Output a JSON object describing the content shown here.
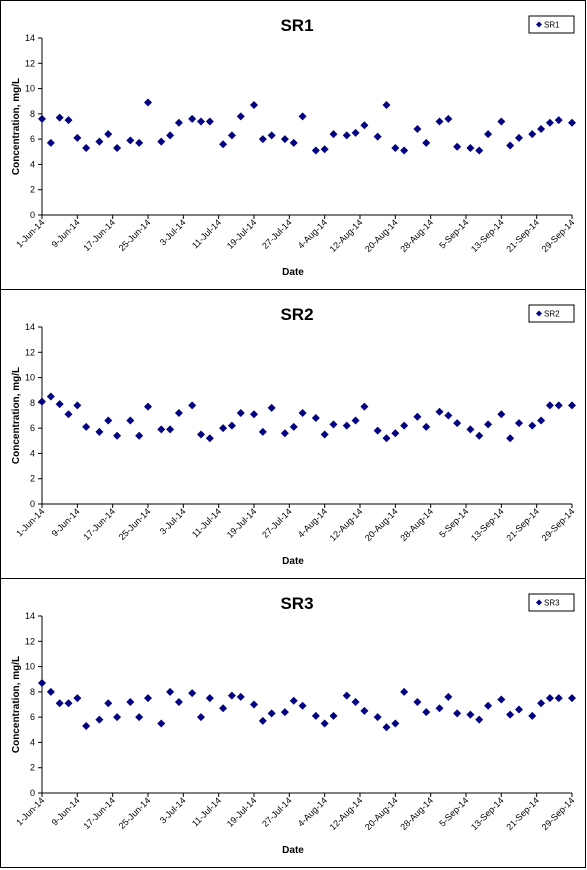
{
  "chart_data": [
    {
      "type": "scatter",
      "title": "SR1",
      "xlabel": "Date",
      "ylabel": "Concentration, mg/L",
      "ylim": [
        0,
        14
      ],
      "yticks": [
        "0",
        "2",
        "4",
        "6",
        "8",
        "10",
        "12",
        "14"
      ],
      "xlim": [
        "1-Jun-14",
        "29-Sep-14"
      ],
      "xticks": [
        "1-Jun-14",
        "9-Jun-14",
        "17-Jun-14",
        "25-Jun-14",
        "3-Jul-14",
        "11-Jul-14",
        "19-Jul-14",
        "27-Jul-14",
        "4-Aug-14",
        "12-Aug-14",
        "20-Aug-14",
        "28-Aug-14",
        "5-Sep-14",
        "13-Sep-14",
        "21-Sep-14",
        "29-Sep-14"
      ],
      "grid": false,
      "legend": "top-right",
      "marker_color": "#000080",
      "series": [
        {
          "name": "SR1",
          "x": [
            "1-Jun-14",
            "3-Jun-14",
            "5-Jun-14",
            "7-Jun-14",
            "9-Jun-14",
            "11-Jun-14",
            "14-Jun-14",
            "16-Jun-14",
            "18-Jun-14",
            "21-Jun-14",
            "23-Jun-14",
            "25-Jun-14",
            "28-Jun-14",
            "30-Jun-14",
            "2-Jul-14",
            "5-Jul-14",
            "7-Jul-14",
            "9-Jul-14",
            "12-Jul-14",
            "14-Jul-14",
            "16-Jul-14",
            "19-Jul-14",
            "21-Jul-14",
            "23-Jul-14",
            "26-Jul-14",
            "28-Jul-14",
            "30-Jul-14",
            "2-Aug-14",
            "4-Aug-14",
            "6-Aug-14",
            "9-Aug-14",
            "11-Aug-14",
            "13-Aug-14",
            "16-Aug-14",
            "18-Aug-14",
            "20-Aug-14",
            "22-Aug-14",
            "25-Aug-14",
            "27-Aug-14",
            "30-Aug-14",
            "1-Sep-14",
            "3-Sep-14",
            "6-Sep-14",
            "8-Sep-14",
            "10-Sep-14",
            "13-Sep-14",
            "15-Sep-14",
            "17-Sep-14",
            "20-Sep-14",
            "22-Sep-14",
            "24-Sep-14",
            "26-Sep-14",
            "29-Sep-14"
          ],
          "y": [
            7.6,
            5.7,
            7.7,
            7.5,
            6.1,
            5.3,
            5.8,
            6.4,
            5.3,
            5.9,
            5.7,
            8.9,
            5.8,
            6.3,
            7.3,
            7.6,
            7.4,
            7.4,
            5.6,
            6.3,
            7.8,
            8.7,
            6.0,
            6.3,
            6.0,
            5.7,
            7.8,
            5.1,
            5.2,
            6.4,
            6.3,
            6.5,
            7.1,
            6.2,
            8.7,
            5.3,
            5.1,
            6.8,
            5.7,
            7.4,
            7.6,
            5.4,
            5.3,
            5.1,
            6.4,
            7.4,
            5.5,
            6.1,
            6.4,
            6.8,
            7.3,
            7.5,
            7.3
          ]
        }
      ]
    },
    {
      "type": "scatter",
      "title": "SR2",
      "xlabel": "Date",
      "ylabel": "Concentration, mg/L",
      "ylim": [
        0,
        14
      ],
      "yticks": [
        "0",
        "2",
        "4",
        "6",
        "8",
        "10",
        "12",
        "14"
      ],
      "xlim": [
        "1-Jun-14",
        "29-Sep-14"
      ],
      "xticks": [
        "1-Jun-14",
        "9-Jun-14",
        "17-Jun-14",
        "25-Jun-14",
        "3-Jul-14",
        "11-Jul-14",
        "19-Jul-14",
        "27-Jul-14",
        "4-Aug-14",
        "12-Aug-14",
        "20-Aug-14",
        "28-Aug-14",
        "5-Sep-14",
        "13-Sep-14",
        "21-Sep-14",
        "29-Sep-14"
      ],
      "grid": false,
      "legend": "top-right",
      "marker_color": "#000080",
      "series": [
        {
          "name": "SR2",
          "x": [
            "1-Jun-14",
            "3-Jun-14",
            "5-Jun-14",
            "7-Jun-14",
            "9-Jun-14",
            "11-Jun-14",
            "14-Jun-14",
            "16-Jun-14",
            "18-Jun-14",
            "21-Jun-14",
            "23-Jun-14",
            "25-Jun-14",
            "28-Jun-14",
            "30-Jun-14",
            "2-Jul-14",
            "5-Jul-14",
            "7-Jul-14",
            "9-Jul-14",
            "12-Jul-14",
            "14-Jul-14",
            "16-Jul-14",
            "19-Jul-14",
            "21-Jul-14",
            "23-Jul-14",
            "26-Jul-14",
            "28-Jul-14",
            "30-Jul-14",
            "2-Aug-14",
            "4-Aug-14",
            "6-Aug-14",
            "9-Aug-14",
            "11-Aug-14",
            "13-Aug-14",
            "16-Aug-14",
            "18-Aug-14",
            "20-Aug-14",
            "22-Aug-14",
            "25-Aug-14",
            "27-Aug-14",
            "30-Aug-14",
            "1-Sep-14",
            "3-Sep-14",
            "6-Sep-14",
            "8-Sep-14",
            "10-Sep-14",
            "13-Sep-14",
            "15-Sep-14",
            "17-Sep-14",
            "20-Sep-14",
            "22-Sep-14",
            "24-Sep-14",
            "26-Sep-14",
            "29-Sep-14"
          ],
          "y": [
            8.1,
            8.5,
            7.9,
            7.1,
            7.8,
            6.1,
            5.7,
            6.6,
            5.4,
            6.6,
            5.4,
            7.7,
            5.9,
            5.9,
            7.2,
            7.8,
            5.5,
            5.2,
            6.0,
            6.2,
            7.2,
            7.1,
            5.7,
            7.6,
            5.6,
            6.1,
            7.2,
            6.8,
            5.5,
            6.3,
            6.2,
            6.6,
            7.7,
            5.8,
            5.2,
            5.6,
            6.2,
            6.9,
            6.1,
            7.3,
            7.0,
            6.4,
            5.9,
            5.4,
            6.3,
            7.1,
            5.2,
            6.4,
            6.2,
            6.6,
            7.8,
            7.8,
            7.8
          ]
        }
      ]
    },
    {
      "type": "scatter",
      "title": "SR3",
      "xlabel": "Date",
      "ylabel": "Concentration, mg/L",
      "ylim": [
        0,
        14
      ],
      "yticks": [
        "0",
        "2",
        "4",
        "6",
        "8",
        "10",
        "12",
        "14"
      ],
      "xlim": [
        "1-Jun-14",
        "29-Sep-14"
      ],
      "xticks": [
        "1-Jun-14",
        "9-Jun-14",
        "17-Jun-14",
        "25-Jun-14",
        "3-Jul-14",
        "11-Jul-14",
        "19-Jul-14",
        "27-Jul-14",
        "4-Aug-14",
        "12-Aug-14",
        "20-Aug-14",
        "28-Aug-14",
        "5-Sep-14",
        "13-Sep-14",
        "21-Sep-14",
        "29-Sep-14"
      ],
      "grid": false,
      "legend": "top-right",
      "marker_color": "#000080",
      "series": [
        {
          "name": "SR3",
          "x": [
            "1-Jun-14",
            "3-Jun-14",
            "5-Jun-14",
            "7-Jun-14",
            "9-Jun-14",
            "11-Jun-14",
            "14-Jun-14",
            "16-Jun-14",
            "18-Jun-14",
            "21-Jun-14",
            "23-Jun-14",
            "25-Jun-14",
            "28-Jun-14",
            "30-Jun-14",
            "2-Jul-14",
            "5-Jul-14",
            "7-Jul-14",
            "9-Jul-14",
            "12-Jul-14",
            "14-Jul-14",
            "16-Jul-14",
            "19-Jul-14",
            "21-Jul-14",
            "23-Jul-14",
            "26-Jul-14",
            "28-Jul-14",
            "30-Jul-14",
            "2-Aug-14",
            "4-Aug-14",
            "6-Aug-14",
            "9-Aug-14",
            "11-Aug-14",
            "13-Aug-14",
            "16-Aug-14",
            "18-Aug-14",
            "20-Aug-14",
            "22-Aug-14",
            "25-Aug-14",
            "27-Aug-14",
            "30-Aug-14",
            "1-Sep-14",
            "3-Sep-14",
            "6-Sep-14",
            "8-Sep-14",
            "10-Sep-14",
            "13-Sep-14",
            "15-Sep-14",
            "17-Sep-14",
            "20-Sep-14",
            "22-Sep-14",
            "24-Sep-14",
            "26-Sep-14",
            "29-Sep-14"
          ],
          "y": [
            8.7,
            8.0,
            7.1,
            7.1,
            7.5,
            5.3,
            5.8,
            7.1,
            6.0,
            7.2,
            6.0,
            7.5,
            5.5,
            8.0,
            7.2,
            7.9,
            6.0,
            7.5,
            6.7,
            7.7,
            7.6,
            7.0,
            5.7,
            6.3,
            6.4,
            7.3,
            6.9,
            6.1,
            5.5,
            6.1,
            7.7,
            7.2,
            6.5,
            6.0,
            5.2,
            5.5,
            8.0,
            7.2,
            6.4,
            6.7,
            7.6,
            6.3,
            6.2,
            5.8,
            6.9,
            7.4,
            6.2,
            6.6,
            6.1,
            7.1,
            7.5,
            7.5,
            7.5
          ]
        }
      ]
    }
  ]
}
